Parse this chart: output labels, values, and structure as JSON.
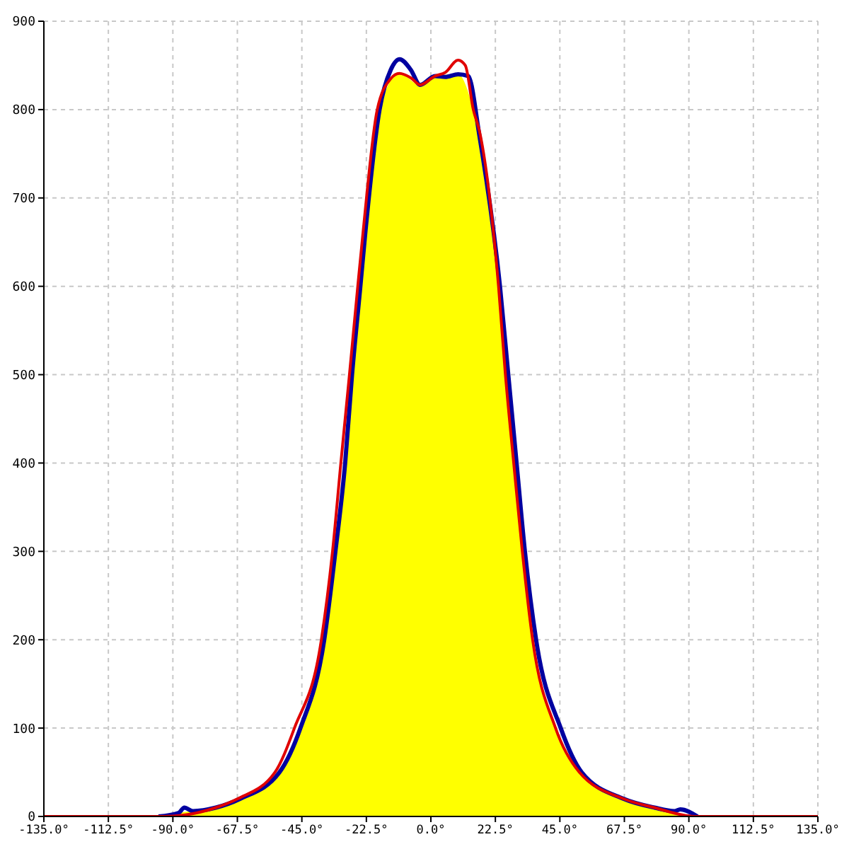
{
  "chart_data": {
    "type": "line",
    "xlim": [
      -135,
      135
    ],
    "xticks": [
      {
        "value": -135,
        "label": "-135.0°"
      },
      {
        "value": -112.5,
        "label": "-112.5°"
      },
      {
        "value": -90,
        "label": "-90.0°"
      },
      {
        "value": -67.5,
        "label": "-67.5°"
      },
      {
        "value": -45,
        "label": "-45.0°"
      },
      {
        "value": -22.5,
        "label": "-22.5°"
      },
      {
        "value": 0,
        "label": "0.0°"
      },
      {
        "value": 22.5,
        "label": "22.5°"
      },
      {
        "value": 45,
        "label": "45.0°"
      },
      {
        "value": 67.5,
        "label": "67.5°"
      },
      {
        "value": 90,
        "label": "90.0°"
      },
      {
        "value": 112.5,
        "label": "112.5°"
      },
      {
        "value": 135,
        "label": "135.0°"
      }
    ],
    "ylim": [
      0,
      900
    ],
    "yticks": [
      0,
      100,
      200,
      300,
      400,
      500,
      600,
      700,
      800,
      900
    ],
    "grid": true,
    "series": [
      {
        "type": "area",
        "color": "#ffff00",
        "x": [
          -95,
          -86,
          -75,
          -66.5,
          -52.8,
          -45.5,
          -37.2,
          -33.3,
          -29.9,
          -27.5,
          -24.6,
          -22.8,
          -17.9,
          -11,
          -3.8,
          1.5,
          9.5,
          14.8,
          17,
          23.6,
          26,
          28.9,
          31.9,
          35.5,
          43.5,
          51.8,
          67.2,
          78,
          92
        ],
        "values": [
          0,
          5,
          10,
          20,
          50,
          100,
          200,
          300,
          400,
          500,
          600,
          663,
          800,
          841,
          828,
          838,
          840,
          800,
          769,
          600,
          500,
          400,
          300,
          200,
          100,
          50,
          20,
          10,
          0
        ]
      },
      {
        "color": "#0000a0",
        "x": [
          -95,
          -88,
          -86,
          -83,
          -75,
          -66.5,
          -52.8,
          -45.5,
          -37.2,
          -33.3,
          -29.9,
          -27.5,
          -24.6,
          -22.8,
          -17.9,
          -14,
          -10.9,
          -7,
          -3.8,
          1.5,
          5,
          9.5,
          13,
          17,
          24.1,
          27,
          29.9,
          32.8,
          36.7,
          45.3,
          52.6,
          67.2,
          78,
          85,
          87,
          93
        ],
        "values": [
          0,
          4,
          10,
          6,
          10,
          20,
          50,
          100,
          200,
          300,
          400,
          500,
          600,
          663,
          800,
          845,
          857,
          845,
          828,
          838,
          837,
          840,
          838,
          769,
          600,
          500,
          400,
          300,
          200,
          100,
          50,
          20,
          10,
          6,
          8,
          0
        ]
      },
      {
        "color": "#e00000",
        "x": [
          -135,
          -93,
          -75,
          -67.4,
          -54.4,
          -47.6,
          -38.2,
          -34.3,
          -31.4,
          -28.4,
          -25.5,
          -23.6,
          -18.7,
          -14,
          -11,
          -7,
          -3.8,
          1.5,
          5,
          9.5,
          12,
          14.8,
          17,
          23.6,
          26,
          28.9,
          31.9,
          35.5,
          43.5,
          51.8,
          67.2,
          78,
          92,
          135
        ],
        "values": [
          0,
          0,
          10,
          20,
          50,
          100,
          200,
          300,
          400,
          500,
          600,
          663,
          800,
          835,
          841,
          836,
          828,
          838,
          842,
          856,
          850,
          800,
          775,
          600,
          500,
          400,
          300,
          200,
          100,
          50,
          20,
          10,
          0,
          0
        ]
      }
    ]
  }
}
